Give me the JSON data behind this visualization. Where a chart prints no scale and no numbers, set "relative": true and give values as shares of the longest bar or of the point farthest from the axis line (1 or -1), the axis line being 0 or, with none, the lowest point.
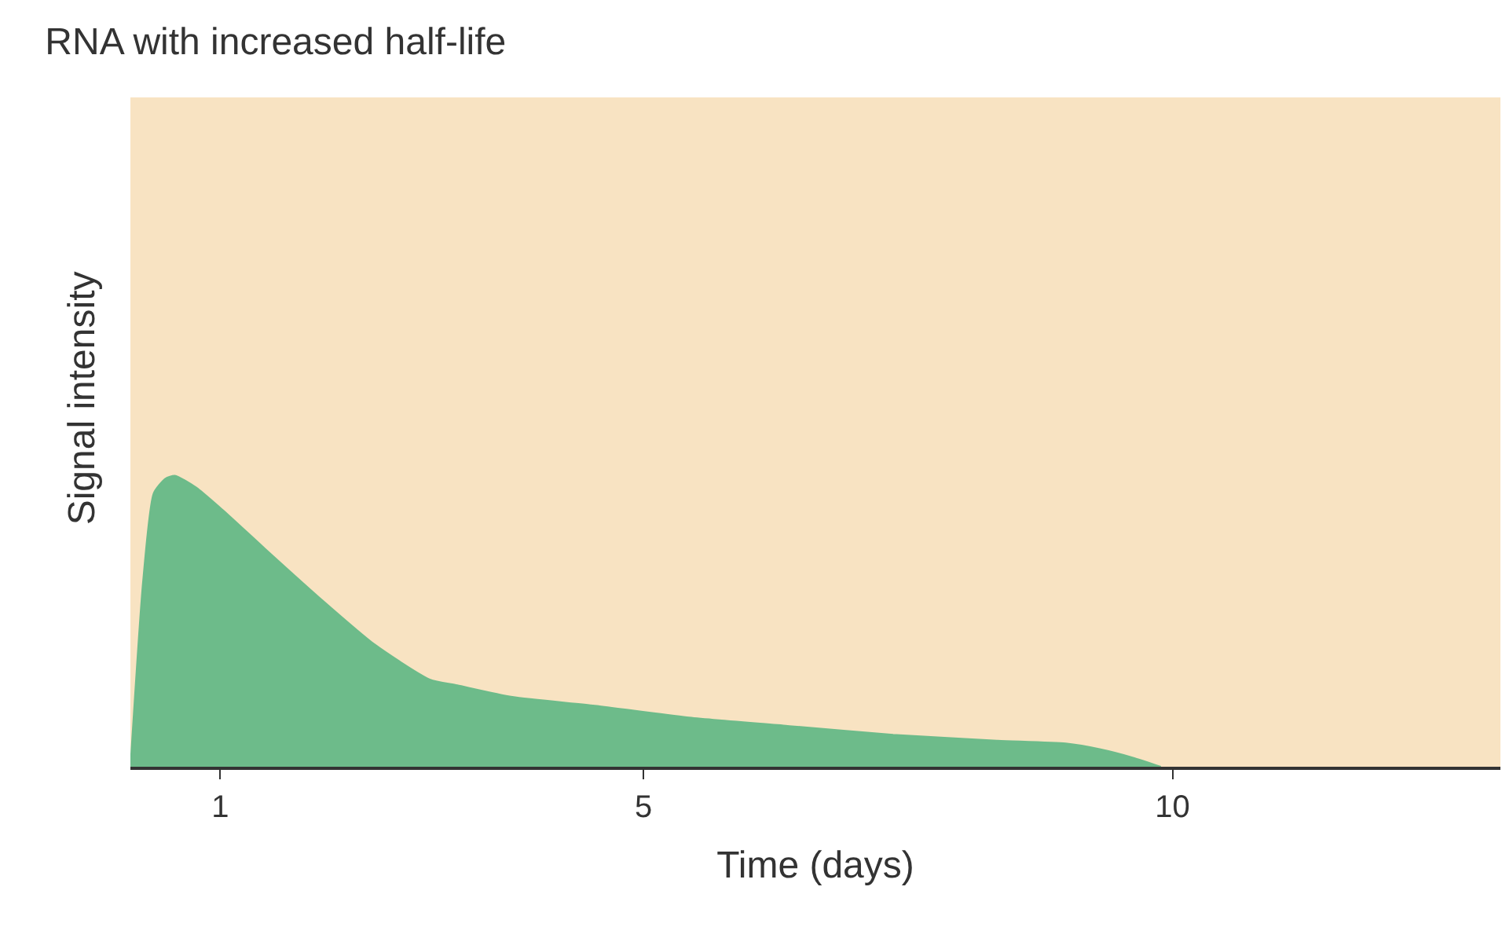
{
  "chart_data": {
    "type": "area",
    "title": "RNA with increased half-life",
    "xlabel": "Time (days)",
    "ylabel": "Signal intensity",
    "relative": true,
    "grid": false,
    "x": [
      0.15,
      0.27,
      0.37,
      0.48,
      0.57,
      0.77,
      1.03,
      1.42,
      1.94,
      2.46,
      2.98,
      3.24,
      3.76,
      4.54,
      5.41,
      6.38,
      7.36,
      8.34,
      8.99,
      9.32,
      9.64,
      9.89
    ],
    "xlim": [
      0.15,
      13.1
    ],
    "xticks": [
      1,
      5,
      10
    ],
    "series": [
      {
        "color": "#6dbb8a",
        "values": [
          0,
          0.64,
          0.94,
          0.99,
          1,
          0.96,
          0.88,
          0.75,
          0.58,
          0.42,
          0.3,
          0.28,
          0.24,
          0.21,
          0.17,
          0.14,
          0.11,
          0.09,
          0.08,
          0.06,
          0.03,
          0
        ]
      }
    ]
  }
}
